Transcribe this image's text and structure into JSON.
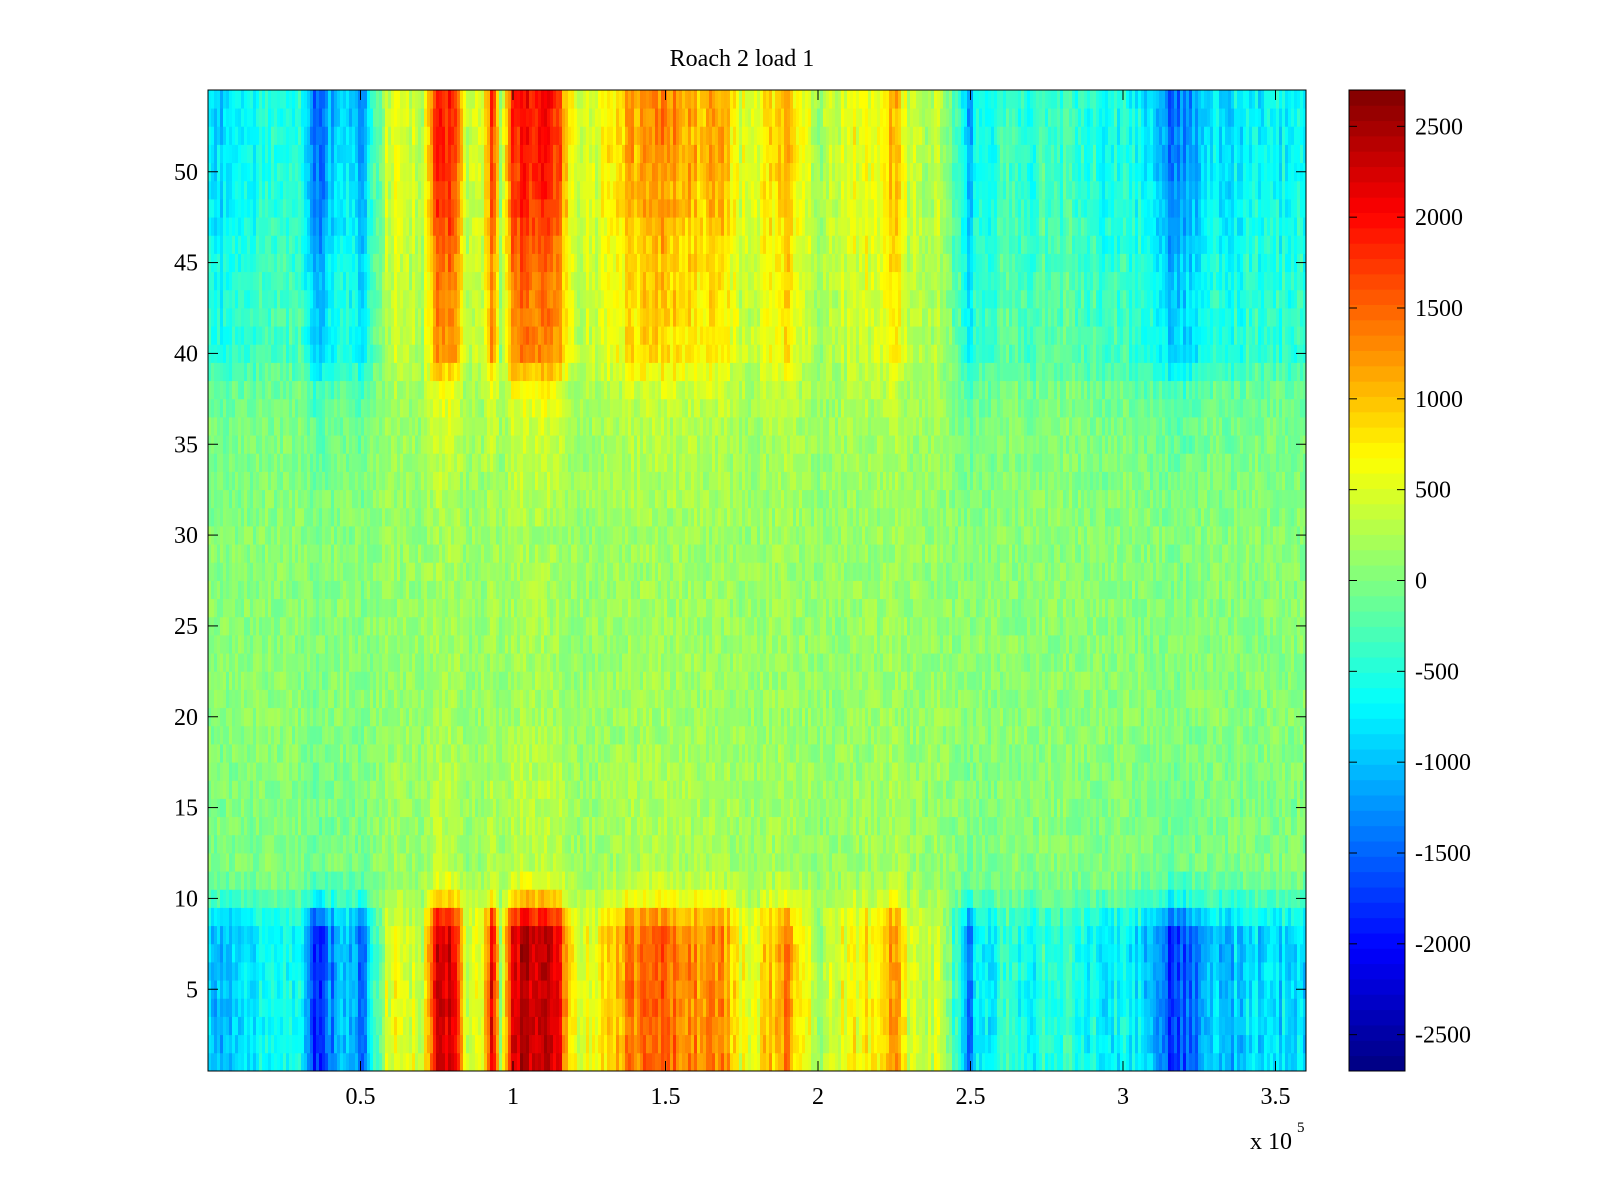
{
  "chart_data": {
    "type": "heatmap",
    "title": "Roach 2 load 1",
    "xlabel": "",
    "ylabel": "",
    "x_multiplier": "x 10",
    "x_multiplier_exponent": "5",
    "xlim": [
      0,
      3.6
    ],
    "ylim": [
      0.5,
      54.5
    ],
    "x_ticks": [
      "0.5",
      "1",
      "1.5",
      "2",
      "2.5",
      "3",
      "3.5"
    ],
    "y_ticks": [
      "5",
      "10",
      "15",
      "20",
      "25",
      "30",
      "35",
      "40",
      "45",
      "50"
    ],
    "colorbar": {
      "colormap": "jet",
      "clim": [
        -2700,
        2700
      ],
      "ticks": [
        "-2500",
        "-2000",
        "-1500",
        "-1000",
        "-500",
        "0",
        "500",
        "1000",
        "1500",
        "2000",
        "2500"
      ]
    },
    "rows": 54,
    "column_profile": {
      "x": [
        0.0,
        0.05,
        0.1,
        0.2,
        0.3,
        0.35,
        0.38,
        0.45,
        0.5,
        0.55,
        0.6,
        0.65,
        0.7,
        0.75,
        0.8,
        0.85,
        0.9,
        0.93,
        0.96,
        1.0,
        1.05,
        1.1,
        1.15,
        1.2,
        1.3,
        1.4,
        1.5,
        1.6,
        1.7,
        1.75,
        1.8,
        1.9,
        1.95,
        2.0,
        2.1,
        2.2,
        2.25,
        2.3,
        2.4,
        2.48,
        2.5,
        2.52,
        2.6,
        2.8,
        3.0,
        3.1,
        3.15,
        3.2,
        3.3,
        3.5,
        3.6
      ],
      "value": [
        -900,
        -1100,
        -1000,
        -700,
        -500,
        -2000,
        -1500,
        -900,
        -1500,
        -400,
        700,
        600,
        200,
        2300,
        2300,
        300,
        400,
        2100,
        300,
        2300,
        2300,
        2200,
        2000,
        500,
        700,
        1400,
        1500,
        1300,
        1200,
        500,
        700,
        1300,
        700,
        300,
        600,
        800,
        1400,
        500,
        300,
        -800,
        -1500,
        -800,
        -500,
        -500,
        -700,
        -900,
        -1800,
        -1600,
        -1000,
        -800,
        -800
      ]
    },
    "row_intensity": {
      "rows": [
        1,
        8,
        9,
        10,
        11,
        12,
        16,
        20,
        30,
        36,
        38,
        40,
        44,
        48,
        50,
        54
      ],
      "value": [
        1.0,
        1.0,
        0.8,
        0.4,
        0.2,
        0.1,
        0.1,
        0.05,
        0.05,
        0.15,
        0.25,
        0.55,
        0.6,
        0.75,
        0.8,
        0.85
      ]
    },
    "neutral_value": 100
  }
}
